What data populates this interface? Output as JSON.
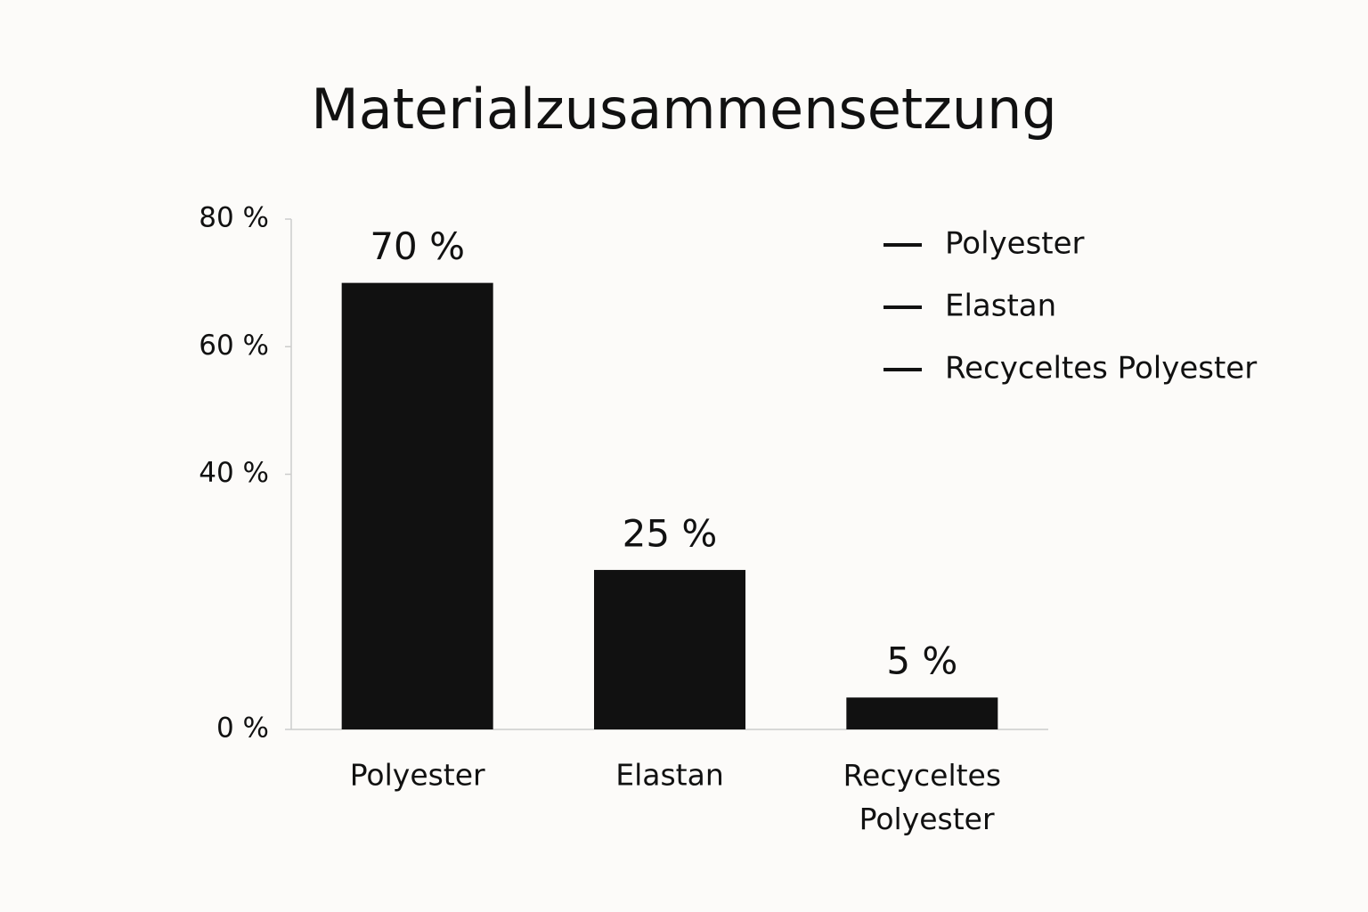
{
  "chart_data": {
    "type": "bar",
    "title": "Materialzusammensetzung",
    "categories": [
      "Polyester",
      "Elastan",
      "Recyceltes Polyester"
    ],
    "values": [
      70,
      25,
      5
    ],
    "value_labels": [
      "70 %",
      "25 %",
      "5 %"
    ],
    "color": "#111111",
    "ylim": [
      0,
      80
    ],
    "yticks": [
      {
        "value": 0,
        "label": "0 %"
      },
      {
        "value": 40,
        "label": "40 %"
      },
      {
        "value": 60,
        "label": "60 %"
      },
      {
        "value": 80,
        "label": "80 %"
      }
    ],
    "grid": false,
    "legend": [
      "Polyester",
      "Elastan",
      "Recyceltes Polyester"
    ],
    "legend_position": "upper right"
  }
}
